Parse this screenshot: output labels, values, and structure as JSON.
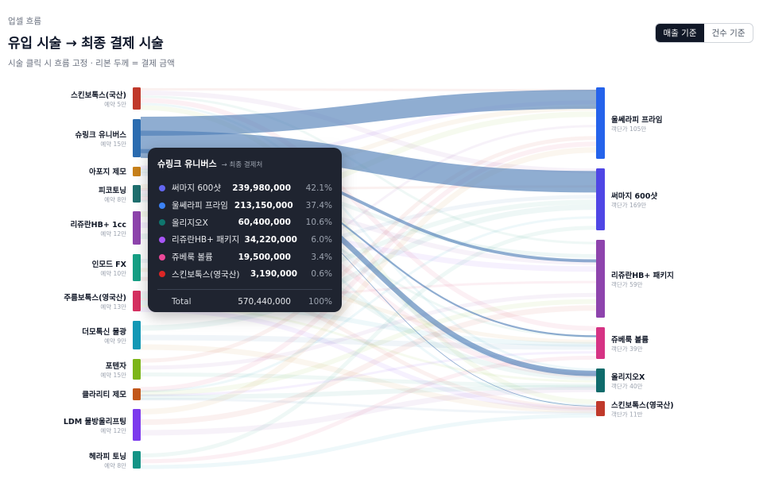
{
  "header": {
    "eyebrow": "업셀 흐름",
    "title": "유입 시술 → 최종 결제 시술",
    "subtitle": "시술 클릭 시 흐름 고정 · 리본 두께 = 결제 금액"
  },
  "toggle": {
    "revenue_label": "매출 기준",
    "count_label": "건수 기준",
    "active": "revenue"
  },
  "chart_data": {
    "type": "sankey",
    "sources": [
      {
        "name": "스킨보톡스(국산)",
        "sub": "예약 5만",
        "color": "#c0392b"
      },
      {
        "name": "슈링크 유니버스",
        "sub": "예약 15만",
        "color": "#2b6cb0"
      },
      {
        "name": "아포지 제모",
        "sub": "",
        "color": "#c8811a"
      },
      {
        "name": "피코토닝",
        "sub": "예약 8만",
        "color": "#1f6f6f"
      },
      {
        "name": "리쥬란HB+ 1cc",
        "sub": "예약 12만",
        "color": "#8e44ad"
      },
      {
        "name": "인모드 FX",
        "sub": "예약 10만",
        "color": "#16a085"
      },
      {
        "name": "주름보톡스(영국산)",
        "sub": "예약 13만",
        "color": "#d63061"
      },
      {
        "name": "더모톡신 물광",
        "sub": "예약 9만",
        "color": "#1398b5"
      },
      {
        "name": "포텐자",
        "sub": "예약 15만",
        "color": "#7cb518"
      },
      {
        "name": "클라리티 제모",
        "sub": "",
        "color": "#c2571a"
      },
      {
        "name": "LDM 물방울리프팅",
        "sub": "예약 12만",
        "color": "#7c3aed"
      },
      {
        "name": "헤라피 토닝",
        "sub": "예약 8만",
        "color": "#159486"
      }
    ],
    "targets": [
      {
        "name": "울쎄라피 프라임",
        "sub": "객단가 105만",
        "color": "#2563eb"
      },
      {
        "name": "써마지 600샷",
        "sub": "객단가 169만",
        "color": "#4f46e5"
      },
      {
        "name": "리쥬란HB+ 패키지",
        "sub": "객단가 59만",
        "color": "#8e44ad"
      },
      {
        "name": "쥬베룩 볼륨",
        "sub": "객단가 39만",
        "color": "#d63384"
      },
      {
        "name": "올리지오X",
        "sub": "객단가 40만",
        "color": "#0f6b6b"
      },
      {
        "name": "스킨보톡스(영국산)",
        "sub": "객단가 11만",
        "color": "#c0392b"
      }
    ],
    "selected_source": "슈링크 유니버스",
    "flows_from_selected": [
      {
        "target": "울쎄라피 프라임",
        "value": 213150000
      },
      {
        "target": "써마지 600샷",
        "value": 239980000
      },
      {
        "target": "리쥬란HB+ 패키지",
        "value": 34220000
      },
      {
        "target": "쥬베룩 볼륨",
        "value": 19500000
      },
      {
        "target": "올리지오X",
        "value": 60400000
      },
      {
        "target": "스킨보톡스(영국산)",
        "value": 3190000
      }
    ]
  },
  "tooltip": {
    "title": "슈링크 유니버스",
    "subtitle": "→ 최종 결제처",
    "rows": [
      {
        "name": "써마지 600샷",
        "amount": "239,980,000",
        "pct": "42.1%",
        "color": "#6366f1"
      },
      {
        "name": "울쎄라피 프라임",
        "amount": "213,150,000",
        "pct": "37.4%",
        "color": "#3b82f6"
      },
      {
        "name": "올리지오X",
        "amount": "60,400,000",
        "pct": "10.6%",
        "color": "#0f766e"
      },
      {
        "name": "리쥬란HB+ 패키지",
        "amount": "34,220,000",
        "pct": "6.0%",
        "color": "#a855f7"
      },
      {
        "name": "쥬베룩 볼륨",
        "amount": "19,500,000",
        "pct": "3.4%",
        "color": "#ec4899"
      },
      {
        "name": "스킨보톡스(영국산)",
        "amount": "3,190,000",
        "pct": "0.6%",
        "color": "#dc2626"
      }
    ],
    "total_label": "Total",
    "total_amount": "570,440,000",
    "total_pct": "100%"
  }
}
